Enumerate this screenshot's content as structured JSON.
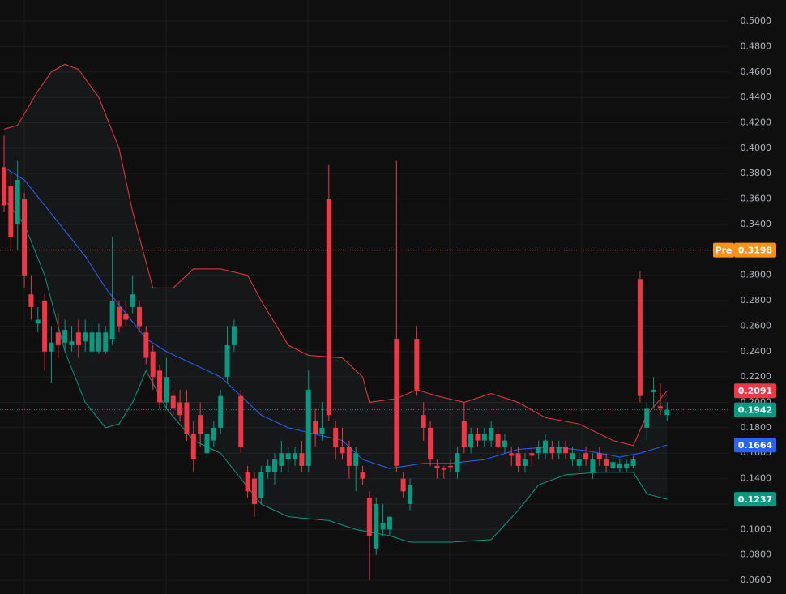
{
  "chart_data": {
    "type": "candlestick",
    "up_color": "#089981",
    "down_color": "#f23645",
    "ylim": [
      0.0492,
      0.5166
    ],
    "yticks": [
      {
        "value": 0.06,
        "label": "0.0600"
      },
      {
        "value": 0.08,
        "label": "0.0800"
      },
      {
        "value": 0.1,
        "label": "0.1000"
      },
      {
        "value": 0.12,
        "label": "0.1200"
      },
      {
        "value": 0.14,
        "label": "0.1400"
      },
      {
        "value": 0.16,
        "label": "0.1600"
      },
      {
        "value": 0.18,
        "label": "0.1800"
      },
      {
        "value": 0.2,
        "label": "0.2000"
      },
      {
        "value": 0.22,
        "label": "0.2200"
      },
      {
        "value": 0.24,
        "label": "0.2400"
      },
      {
        "value": 0.26,
        "label": "0.2600"
      },
      {
        "value": 0.28,
        "label": "0.2800"
      },
      {
        "value": 0.3,
        "label": "0.3000"
      },
      {
        "value": 0.32,
        "label": "0.3200"
      },
      {
        "value": 0.34,
        "label": "0.3400"
      },
      {
        "value": 0.36,
        "label": "0.3600"
      },
      {
        "value": 0.38,
        "label": "0.3800"
      },
      {
        "value": 0.4,
        "label": "0.4000"
      },
      {
        "value": 0.42,
        "label": "0.4200"
      },
      {
        "value": 0.44,
        "label": "0.4400"
      },
      {
        "value": 0.46,
        "label": "0.4600"
      },
      {
        "value": 0.48,
        "label": "0.4800"
      },
      {
        "value": 0.5,
        "label": "0.5000"
      }
    ],
    "candles": {
      "open": [
        0.385,
        0.37,
        0.34,
        0.36,
        0.285,
        0.262,
        0.28,
        0.24,
        0.255,
        0.247,
        0.245,
        0.255,
        0.248,
        0.24,
        0.24,
        0.24,
        0.25,
        0.275,
        0.27,
        0.275,
        0.275,
        0.255,
        0.24,
        0.225,
        0.2,
        0.205,
        0.2,
        0.2,
        0.175,
        0.19,
        0.16,
        0.17,
        0.18,
        0.22,
        0.245,
        0.205,
        0.145,
        0.14,
        0.125,
        0.145,
        0.145,
        0.15,
        0.155,
        0.155,
        0.16,
        0.15,
        0.185,
        0.175,
        0.36,
        0.18,
        0.165,
        0.165,
        0.15,
        0.145,
        0.125,
        0.085,
        0.1,
        0.1,
        0.25,
        0.14,
        0.12,
        0.25,
        0.19,
        0.18,
        0.15,
        0.148,
        0.15,
        0.145,
        0.185,
        0.165,
        0.175,
        0.17,
        0.17,
        0.175,
        0.165,
        0.16,
        0.16,
        0.15,
        0.16,
        0.16,
        0.16,
        0.165,
        0.16,
        0.165,
        0.155,
        0.15,
        0.16,
        0.145,
        0.16,
        0.155,
        0.148,
        0.148,
        0.148,
        0.15,
        0.297,
        0.18,
        0.208,
        0.197,
        0.19
      ],
      "high": [
        0.41,
        0.38,
        0.39,
        0.365,
        0.3,
        0.275,
        0.285,
        0.26,
        0.27,
        0.265,
        0.26,
        0.265,
        0.265,
        0.265,
        0.262,
        0.26,
        0.33,
        0.28,
        0.28,
        0.3,
        0.28,
        0.26,
        0.245,
        0.23,
        0.235,
        0.21,
        0.21,
        0.21,
        0.185,
        0.2,
        0.18,
        0.185,
        0.21,
        0.26,
        0.265,
        0.21,
        0.15,
        0.145,
        0.15,
        0.155,
        0.16,
        0.17,
        0.165,
        0.165,
        0.17,
        0.225,
        0.195,
        0.2,
        0.387,
        0.185,
        0.18,
        0.17,
        0.165,
        0.15,
        0.13,
        0.125,
        0.12,
        0.11,
        0.39,
        0.145,
        0.14,
        0.26,
        0.2,
        0.185,
        0.155,
        0.15,
        0.155,
        0.165,
        0.2,
        0.18,
        0.18,
        0.18,
        0.185,
        0.18,
        0.175,
        0.165,
        0.165,
        0.16,
        0.165,
        0.17,
        0.175,
        0.17,
        0.17,
        0.17,
        0.165,
        0.16,
        0.165,
        0.16,
        0.165,
        0.16,
        0.158,
        0.155,
        0.155,
        0.158,
        0.303,
        0.2,
        0.22,
        0.215,
        0.2
      ],
      "low": [
        0.35,
        0.32,
        0.32,
        0.29,
        0.265,
        0.255,
        0.225,
        0.215,
        0.235,
        0.24,
        0.24,
        0.235,
        0.24,
        0.235,
        0.238,
        0.238,
        0.245,
        0.255,
        0.26,
        0.27,
        0.255,
        0.23,
        0.21,
        0.195,
        0.195,
        0.19,
        0.185,
        0.17,
        0.145,
        0.165,
        0.155,
        0.165,
        0.175,
        0.215,
        0.24,
        0.16,
        0.125,
        0.11,
        0.12,
        0.14,
        0.135,
        0.145,
        0.145,
        0.15,
        0.145,
        0.145,
        0.165,
        0.17,
        0.185,
        0.155,
        0.155,
        0.14,
        0.13,
        0.135,
        0.06,
        0.08,
        0.095,
        0.095,
        0.145,
        0.125,
        0.115,
        0.205,
        0.17,
        0.15,
        0.14,
        0.14,
        0.145,
        0.14,
        0.16,
        0.16,
        0.165,
        0.165,
        0.165,
        0.16,
        0.16,
        0.15,
        0.145,
        0.145,
        0.15,
        0.155,
        0.155,
        0.155,
        0.155,
        0.155,
        0.15,
        0.145,
        0.15,
        0.14,
        0.15,
        0.145,
        0.145,
        0.145,
        0.145,
        0.148,
        0.2,
        0.17,
        0.195,
        0.19,
        0.185
      ],
      "close": [
        0.355,
        0.33,
        0.375,
        0.3,
        0.275,
        0.265,
        0.24,
        0.247,
        0.245,
        0.257,
        0.248,
        0.245,
        0.255,
        0.255,
        0.255,
        0.255,
        0.28,
        0.26,
        0.265,
        0.285,
        0.26,
        0.235,
        0.22,
        0.2,
        0.22,
        0.195,
        0.19,
        0.175,
        0.155,
        0.175,
        0.175,
        0.18,
        0.205,
        0.245,
        0.26,
        0.165,
        0.13,
        0.12,
        0.145,
        0.15,
        0.155,
        0.16,
        0.16,
        0.16,
        0.15,
        0.21,
        0.175,
        0.18,
        0.19,
        0.165,
        0.16,
        0.15,
        0.16,
        0.14,
        0.095,
        0.12,
        0.105,
        0.11,
        0.15,
        0.13,
        0.135,
        0.21,
        0.18,
        0.155,
        0.148,
        0.147,
        0.149,
        0.16,
        0.165,
        0.175,
        0.17,
        0.175,
        0.18,
        0.165,
        0.17,
        0.158,
        0.15,
        0.155,
        0.158,
        0.165,
        0.17,
        0.16,
        0.165,
        0.16,
        0.16,
        0.155,
        0.155,
        0.155,
        0.155,
        0.15,
        0.153,
        0.152,
        0.152,
        0.155,
        0.205,
        0.195,
        0.21,
        0.195,
        0.1942
      ]
    },
    "bands": {
      "upper": {
        "color": "#f23645",
        "x": [
          0,
          2,
          5,
          7,
          9,
          11,
          14,
          17,
          19,
          21,
          22,
          25,
          28,
          32,
          36,
          38,
          42,
          45,
          50,
          53,
          54,
          58,
          61,
          64,
          68,
          72,
          76,
          80,
          85,
          90,
          93,
          95,
          98
        ],
        "values": [
          0.415,
          0.418,
          0.445,
          0.46,
          0.466,
          0.462,
          0.44,
          0.4,
          0.35,
          0.31,
          0.29,
          0.29,
          0.305,
          0.305,
          0.3,
          0.28,
          0.245,
          0.237,
          0.235,
          0.22,
          0.2,
          0.203,
          0.21,
          0.205,
          0.2,
          0.207,
          0.2,
          0.188,
          0.183,
          0.17,
          0.166,
          0.19,
          0.2091
        ]
      },
      "basis": {
        "color": "#2962ff",
        "x": [
          0,
          3,
          6,
          9,
          12,
          15,
          18,
          21,
          24,
          28,
          32,
          35,
          38,
          42,
          46,
          50,
          53,
          57,
          62,
          66,
          71,
          76,
          81,
          86,
          91,
          94,
          98
        ],
        "values": [
          0.385,
          0.375,
          0.355,
          0.335,
          0.315,
          0.29,
          0.27,
          0.25,
          0.24,
          0.23,
          0.22,
          0.205,
          0.19,
          0.18,
          0.175,
          0.17,
          0.155,
          0.148,
          0.152,
          0.152,
          0.155,
          0.163,
          0.165,
          0.162,
          0.157,
          0.16,
          0.1664
        ]
      },
      "lower": {
        "color": "#089981",
        "x": [
          0,
          3,
          6,
          9,
          12,
          15,
          17,
          19,
          21,
          24,
          28,
          32,
          35,
          38,
          42,
          48,
          52,
          54,
          57,
          60,
          66,
          72,
          76,
          79,
          83,
          88,
          93,
          95,
          98
        ],
        "values": [
          0.36,
          0.34,
          0.3,
          0.24,
          0.2,
          0.18,
          0.183,
          0.2,
          0.225,
          0.195,
          0.17,
          0.16,
          0.14,
          0.12,
          0.11,
          0.107,
          0.1,
          0.098,
          0.095,
          0.09,
          0.09,
          0.092,
          0.115,
          0.135,
          0.143,
          0.145,
          0.145,
          0.128,
          0.1237
        ]
      }
    },
    "markers": [
      {
        "name": "Pre",
        "value": 0.3198,
        "value_label": "0.3198",
        "color": "#f7931a",
        "line": true
      },
      {
        "value": 0.2091,
        "value_label": "0.2091",
        "color": "#f23645",
        "line": false
      },
      {
        "value": 0.1942,
        "value_label": "0.1942",
        "color": "#089981",
        "line": true
      },
      {
        "value": 0.1664,
        "value_label": "0.1664",
        "color": "#2962ff",
        "line": false
      },
      {
        "value": 0.1237,
        "value_label": "0.1237",
        "color": "#089981",
        "line": false
      }
    ]
  }
}
